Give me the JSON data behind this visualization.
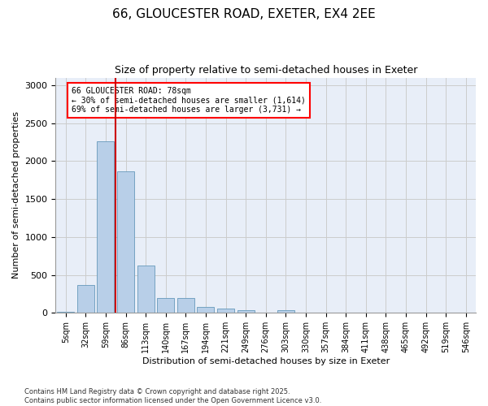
{
  "title_line1": "66, GLOUCESTER ROAD, EXETER, EX4 2EE",
  "title_line2": "Size of property relative to semi-detached houses in Exeter",
  "xlabel": "Distribution of semi-detached houses by size in Exeter",
  "ylabel": "Number of semi-detached properties",
  "categories": [
    "5sqm",
    "32sqm",
    "59sqm",
    "86sqm",
    "113sqm",
    "140sqm",
    "167sqm",
    "194sqm",
    "221sqm",
    "249sqm",
    "276sqm",
    "303sqm",
    "330sqm",
    "357sqm",
    "384sqm",
    "411sqm",
    "438sqm",
    "465sqm",
    "492sqm",
    "519sqm",
    "546sqm"
  ],
  "values": [
    15,
    370,
    2260,
    1860,
    620,
    195,
    195,
    80,
    55,
    40,
    5,
    40,
    0,
    0,
    0,
    0,
    0,
    0,
    0,
    0,
    0
  ],
  "bar_color": "#b8cfe8",
  "bar_edge_color": "#6699bb",
  "grid_color": "#cccccc",
  "vline_color": "#cc0000",
  "property_size": "78sqm",
  "smaller_pct": 30,
  "smaller_count": 1614,
  "larger_pct": 69,
  "larger_count": 3731,
  "ylim": [
    0,
    3100
  ],
  "yticks": [
    0,
    500,
    1000,
    1500,
    2000,
    2500,
    3000
  ],
  "footer": "Contains HM Land Registry data © Crown copyright and database right 2025.\nContains public sector information licensed under the Open Government Licence v3.0.",
  "background_color": "#e8eef8",
  "plot_bg_color": "#ffffff",
  "title_fontsize": 11,
  "subtitle_fontsize": 9
}
